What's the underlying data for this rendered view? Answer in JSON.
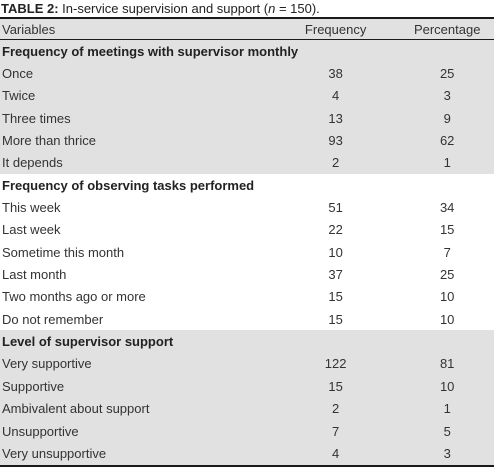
{
  "caption": {
    "label": "TABLE 2:",
    "text_before": " In-service supervision and support (",
    "n_symbol": "n",
    "text_after": " = 150)."
  },
  "columns": [
    "Variables",
    "Frequency",
    "Percentage"
  ],
  "sections": [
    {
      "title": "Frequency of meetings with supervisor monthly",
      "shaded": true,
      "rows": [
        {
          "label": "Once",
          "frequency": "38",
          "percentage": "25"
        },
        {
          "label": "Twice",
          "frequency": "4",
          "percentage": "3"
        },
        {
          "label": "Three times",
          "frequency": "13",
          "percentage": "9"
        },
        {
          "label": "More than thrice",
          "frequency": "93",
          "percentage": "62"
        },
        {
          "label": "It depends",
          "frequency": "2",
          "percentage": "1"
        }
      ]
    },
    {
      "title": "Frequency of observing tasks performed",
      "shaded": false,
      "rows": [
        {
          "label": "This week",
          "frequency": "51",
          "percentage": "34"
        },
        {
          "label": "Last week",
          "frequency": "22",
          "percentage": "15"
        },
        {
          "label": "Sometime this month",
          "frequency": "10",
          "percentage": "7"
        },
        {
          "label": "Last month",
          "frequency": "37",
          "percentage": "25"
        },
        {
          "label": "Two months ago or more",
          "frequency": "15",
          "percentage": "10"
        },
        {
          "label": "Do not remember",
          "frequency": "15",
          "percentage": "10"
        }
      ]
    },
    {
      "title": "Level of supervisor support",
      "shaded": true,
      "rows": [
        {
          "label": "Very supportive",
          "frequency": "122",
          "percentage": "81"
        },
        {
          "label": "Supportive",
          "frequency": "15",
          "percentage": "10"
        },
        {
          "label": "Ambivalent about support",
          "frequency": "2",
          "percentage": "1"
        },
        {
          "label": "Unsupportive",
          "frequency": "7",
          "percentage": "5"
        },
        {
          "label": "Very unsupportive",
          "frequency": "4",
          "percentage": "3"
        }
      ]
    }
  ],
  "colors": {
    "shade": "#e1e1e1",
    "rule": "#1a1a1a",
    "text": "#333333"
  }
}
